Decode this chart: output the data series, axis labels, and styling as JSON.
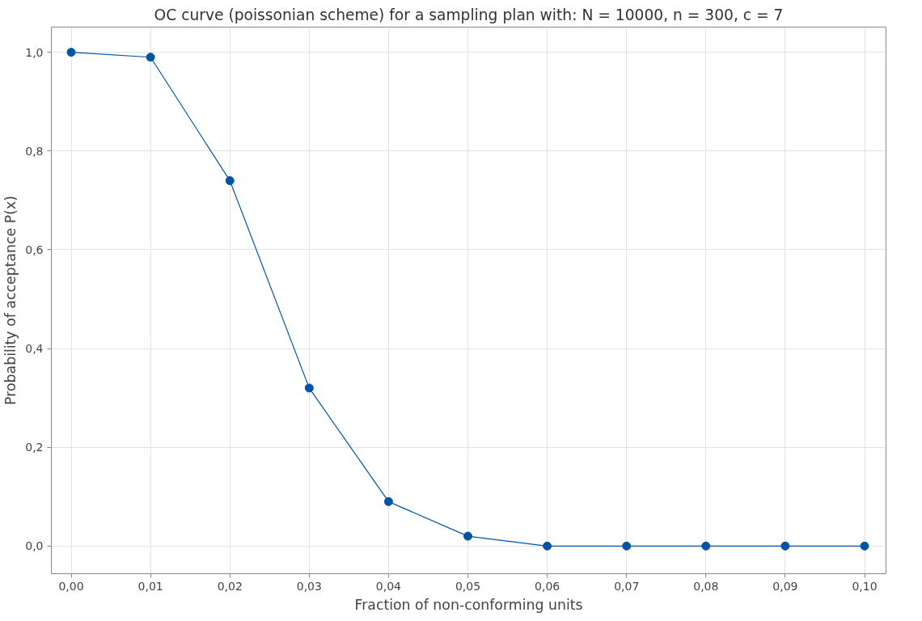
{
  "chart_data": {
    "type": "line",
    "title": "OC curve (poissonian scheme) for a sampling plan with: N = 10000, n = 300, c = 7",
    "xlabel": "Fraction of non-conforming units",
    "ylabel": "Probability of acceptance P(x)",
    "x": [
      0,
      0.01,
      0.02,
      0.03,
      0.04,
      0.05,
      0.06,
      0.07,
      0.08,
      0.09,
      0.1
    ],
    "series": [
      {
        "color": "#0054a6",
        "values": [
          1.0,
          0.99,
          0.74,
          0.32,
          0.09,
          0.02,
          0.0,
          0.0,
          0.0,
          0.0,
          0.0
        ]
      }
    ],
    "xlim": [
      -0.0025,
      0.1027
    ],
    "ylim": [
      -0.056,
      1.051
    ],
    "xticks": [
      {
        "value": 0,
        "label": "0,00"
      },
      {
        "value": 0.01,
        "label": "0,01"
      },
      {
        "value": 0.02,
        "label": "0,02"
      },
      {
        "value": 0.03,
        "label": "0,03"
      },
      {
        "value": 0.04,
        "label": "0,04"
      },
      {
        "value": 0.05,
        "label": "0,05"
      },
      {
        "value": 0.06,
        "label": "0,06"
      },
      {
        "value": 0.07,
        "label": "0,07"
      },
      {
        "value": 0.08,
        "label": "0,08"
      },
      {
        "value": 0.09,
        "label": "0,09"
      },
      {
        "value": 0.1,
        "label": "0,10"
      }
    ],
    "yticks": [
      {
        "value": 0,
        "label": "0,0"
      },
      {
        "value": 0.2,
        "label": "0,2"
      },
      {
        "value": 0.4,
        "label": "0,4"
      },
      {
        "value": 0.6,
        "label": "0,6"
      },
      {
        "value": 0.8,
        "label": "0,8"
      },
      {
        "value": 1.0,
        "label": "1,0"
      }
    ],
    "grid": true,
    "marker": "circle",
    "line_style": "solid"
  }
}
